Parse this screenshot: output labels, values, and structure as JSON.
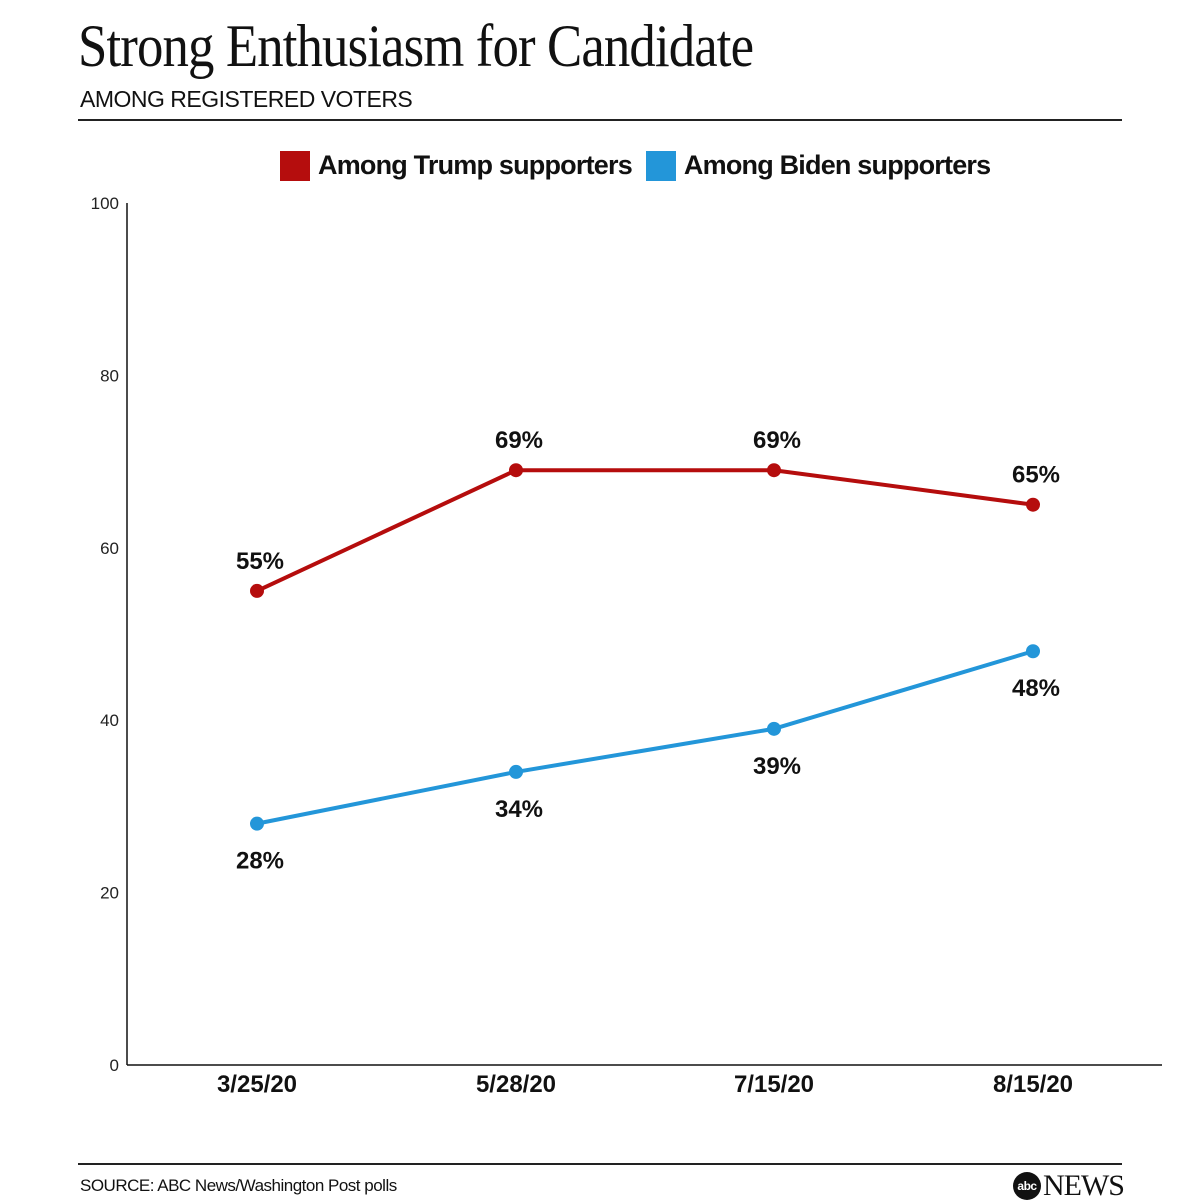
{
  "header": {
    "title": "Strong Enthusiasm for Candidate",
    "subtitle": "AMONG REGISTERED VOTERS"
  },
  "footer": {
    "source": "SOURCE: ABC News/Washington Post polls",
    "logo_ball": "abc",
    "logo_text": "NEWS"
  },
  "chart_data": {
    "type": "line",
    "title": "Strong Enthusiasm for Candidate",
    "subtitle": "AMONG REGISTERED VOTERS",
    "categories": [
      "3/25/20",
      "5/28/20",
      "7/15/20",
      "8/15/20"
    ],
    "yticks": [
      "0",
      "20",
      "40",
      "60",
      "80",
      "100"
    ],
    "ylim": [
      0,
      100
    ],
    "legend_position": "top",
    "grid": false,
    "series": [
      {
        "name": "Among Trump supporters",
        "color": "#b50d0d",
        "values": [
          55,
          69,
          69,
          65
        ],
        "labels": [
          "55%",
          "69%",
          "69%",
          "65%"
        ],
        "label_side": "above"
      },
      {
        "name": "Among Biden supporters",
        "color": "#2396d9",
        "values": [
          28,
          34,
          39,
          48
        ],
        "labels": [
          "28%",
          "34%",
          "39%",
          "48%"
        ],
        "label_side": "below"
      }
    ]
  }
}
